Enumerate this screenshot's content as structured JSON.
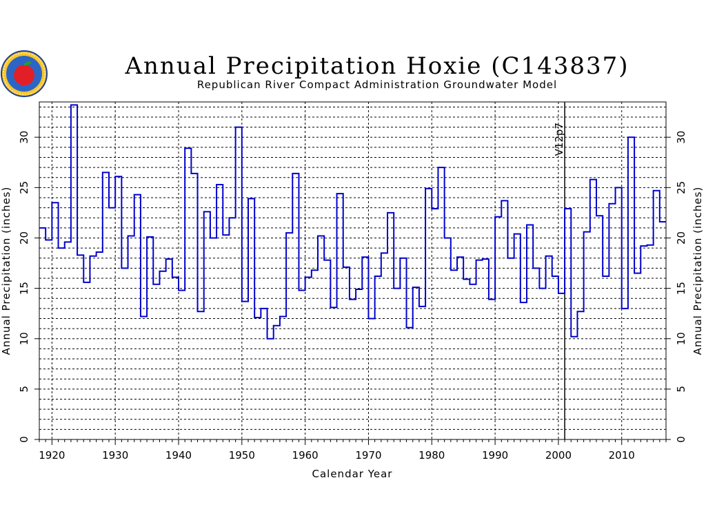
{
  "chart_data": {
    "type": "step",
    "title": "Annual Precipitation Hoxie (C143837)",
    "subtitle": "Republican River Compact Administration Groundwater Model",
    "xlabel": "Calendar Year",
    "ylabel_left": "Annual Precipitation (inches)",
    "ylabel_right": "Annual Precipitation (inches)",
    "xlim": [
      1918,
      2017
    ],
    "ylim": [
      0,
      33.5
    ],
    "x_ticks": [
      1920,
      1930,
      1940,
      1950,
      1960,
      1970,
      1980,
      1990,
      2000,
      2010
    ],
    "y_ticks": [
      0,
      5,
      10,
      15,
      20,
      25,
      30
    ],
    "grid": "dashed",
    "marker_line": {
      "x": 2001,
      "label": "V12p7"
    },
    "series_color": "#0000cc",
    "years": [
      1918,
      1919,
      1920,
      1921,
      1922,
      1923,
      1924,
      1925,
      1926,
      1927,
      1928,
      1929,
      1930,
      1931,
      1932,
      1933,
      1934,
      1935,
      1936,
      1937,
      1938,
      1939,
      1940,
      1941,
      1942,
      1943,
      1944,
      1945,
      1946,
      1947,
      1948,
      1949,
      1950,
      1951,
      1952,
      1953,
      1954,
      1955,
      1956,
      1957,
      1958,
      1959,
      1960,
      1961,
      1962,
      1963,
      1964,
      1965,
      1966,
      1967,
      1968,
      1969,
      1970,
      1971,
      1972,
      1973,
      1974,
      1975,
      1976,
      1977,
      1978,
      1979,
      1980,
      1981,
      1982,
      1983,
      1984,
      1985,
      1986,
      1987,
      1988,
      1989,
      1990,
      1991,
      1992,
      1993,
      1994,
      1995,
      1996,
      1997,
      1998,
      1999,
      2000,
      2001,
      2002,
      2003,
      2004,
      2005,
      2006,
      2007,
      2008,
      2009,
      2010,
      2011,
      2012,
      2013,
      2014,
      2015,
      2016
    ],
    "values": [
      21.0,
      19.8,
      23.5,
      19.0,
      19.6,
      33.2,
      18.3,
      15.6,
      18.2,
      18.6,
      26.5,
      23.0,
      26.1,
      17.0,
      20.2,
      24.3,
      12.2,
      20.1,
      15.4,
      16.7,
      17.9,
      16.1,
      14.8,
      28.9,
      26.4,
      12.7,
      22.6,
      20.0,
      25.3,
      20.3,
      22.0,
      31.0,
      13.7,
      23.9,
      12.1,
      13.0,
      10.0,
      11.3,
      12.2,
      20.5,
      26.4,
      14.8,
      16.1,
      16.8,
      20.2,
      17.8,
      13.1,
      24.4,
      17.1,
      13.9,
      14.9,
      18.1,
      12.0,
      16.2,
      18.5,
      22.5,
      15.0,
      18.0,
      11.1,
      15.1,
      13.2,
      24.9,
      22.9,
      27.0,
      20.0,
      16.8,
      18.1,
      15.9,
      15.4,
      17.8,
      17.9,
      13.9,
      22.1,
      23.7,
      18.0,
      20.4,
      13.6,
      21.3,
      17.0,
      15.0,
      18.2,
      16.2,
      14.5,
      22.9,
      10.2,
      12.7,
      20.6,
      25.8,
      22.2,
      16.2,
      23.4,
      25.0,
      13.0,
      30.0,
      16.5,
      19.2,
      19.3,
      24.7,
      21.6
    ]
  }
}
